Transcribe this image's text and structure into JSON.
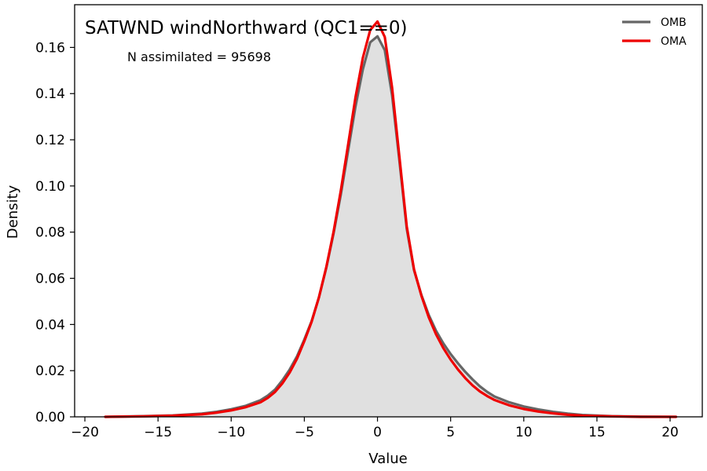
{
  "chart_data": {
    "type": "line",
    "title": "SATWND windNorthward (QC1==0)",
    "annotation": "N assimilated = 95698",
    "xlabel": "Value",
    "ylabel": "Density",
    "xlim": [
      -20.7,
      22.2
    ],
    "ylim": [
      0,
      0.1785
    ],
    "xticks": [
      -20,
      -15,
      -10,
      -5,
      0,
      5,
      10,
      15,
      20
    ],
    "xtick_labels": [
      "−20",
      "−15",
      "−10",
      "−5",
      "0",
      "5",
      "10",
      "15",
      "20"
    ],
    "yticks": [
      0,
      0.02,
      0.04,
      0.06,
      0.08,
      0.1,
      0.12,
      0.14,
      0.16
    ],
    "ytick_labels": [
      "0.00",
      "0.02",
      "0.04",
      "0.06",
      "0.08",
      "0.10",
      "0.12",
      "0.14",
      "0.16"
    ],
    "grid": false,
    "legend_position": "top-right",
    "histogram": {
      "color": "#e0e0e0",
      "x": [
        -18.6,
        -16,
        -14,
        -12,
        -11,
        -10,
        -9,
        -8,
        -7.5,
        -7,
        -6.5,
        -6,
        -5.5,
        -5,
        -4.5,
        -4,
        -3.5,
        -3,
        -2.5,
        -2,
        -1.5,
        -1,
        -0.5,
        0,
        0.5,
        1,
        1.5,
        2,
        2.5,
        3,
        3.5,
        4,
        4.5,
        5,
        5.5,
        6,
        6.5,
        7,
        7.5,
        8,
        9,
        10,
        11,
        12,
        13,
        14,
        16,
        18,
        20.4
      ],
      "y": [
        0,
        0.0003,
        0.0006,
        0.0014,
        0.0022,
        0.0033,
        0.0048,
        0.0072,
        0.0092,
        0.0118,
        0.0158,
        0.0205,
        0.0262,
        0.0335,
        0.0415,
        0.0518,
        0.0645,
        0.0795,
        0.0965,
        0.1155,
        0.1345,
        0.1505,
        0.1622,
        0.1648,
        0.1588,
        0.1392,
        0.1108,
        0.0815,
        0.0635,
        0.0528,
        0.0442,
        0.0373,
        0.0318,
        0.0272,
        0.0232,
        0.0195,
        0.0162,
        0.0132,
        0.0108,
        0.0088,
        0.0063,
        0.0045,
        0.0032,
        0.0022,
        0.0014,
        0.0008,
        0.0003,
        0.0001,
        0
      ]
    },
    "series": [
      {
        "name": "OMB",
        "color": "#666666",
        "x": [
          -18.6,
          -16,
          -14,
          -12,
          -11,
          -10,
          -9,
          -8,
          -7.5,
          -7,
          -6.5,
          -6,
          -5.5,
          -5,
          -4.5,
          -4,
          -3.5,
          -3,
          -2.5,
          -2,
          -1.5,
          -1,
          -0.5,
          0,
          0.5,
          1,
          1.5,
          2,
          2.5,
          3,
          3.5,
          4,
          4.5,
          5,
          5.5,
          6,
          6.5,
          7,
          7.5,
          8,
          9,
          10,
          11,
          12,
          13,
          14,
          16,
          18,
          20.4
        ],
        "y": [
          0,
          0.0003,
          0.0006,
          0.0014,
          0.0022,
          0.0033,
          0.0048,
          0.0072,
          0.0092,
          0.0118,
          0.0158,
          0.0205,
          0.0262,
          0.0335,
          0.0415,
          0.0518,
          0.0645,
          0.0795,
          0.0965,
          0.1155,
          0.1345,
          0.1505,
          0.1622,
          0.1648,
          0.1588,
          0.1392,
          0.1108,
          0.0815,
          0.0635,
          0.0528,
          0.0442,
          0.0373,
          0.0318,
          0.0272,
          0.0232,
          0.0195,
          0.0162,
          0.0132,
          0.0108,
          0.0088,
          0.0063,
          0.0045,
          0.0032,
          0.0022,
          0.0014,
          0.0008,
          0.0003,
          0.0001,
          0
        ]
      },
      {
        "name": "OMA",
        "color": "#ee0000",
        "x": [
          -18.6,
          -16,
          -14,
          -12,
          -11,
          -10,
          -9,
          -8,
          -7.5,
          -7,
          -6.5,
          -6,
          -5.5,
          -5,
          -4.5,
          -4,
          -3.5,
          -3,
          -2.5,
          -2,
          -1.5,
          -1,
          -0.5,
          0,
          0.5,
          1,
          1.5,
          2,
          2.5,
          3,
          3.5,
          4,
          4.5,
          5,
          5.5,
          6,
          6.5,
          7,
          7.5,
          8,
          9,
          10,
          11,
          12,
          13,
          14,
          16,
          18,
          20.4
        ],
        "y": [
          0,
          0.0002,
          0.0005,
          0.0011,
          0.0018,
          0.0028,
          0.0042,
          0.0063,
          0.0082,
          0.0108,
          0.0145,
          0.0192,
          0.0252,
          0.0328,
          0.0412,
          0.0518,
          0.0648,
          0.0802,
          0.0982,
          0.1182,
          0.1385,
          0.1555,
          0.1675,
          0.1712,
          0.1645,
          0.1425,
          0.1125,
          0.0825,
          0.0638,
          0.0525,
          0.0432,
          0.0358,
          0.0298,
          0.0248,
          0.0205,
          0.0168,
          0.0136,
          0.011,
          0.009,
          0.0073,
          0.005,
          0.0034,
          0.0023,
          0.0015,
          0.0009,
          0.0005,
          0.0002,
          0,
          0
        ]
      }
    ]
  }
}
